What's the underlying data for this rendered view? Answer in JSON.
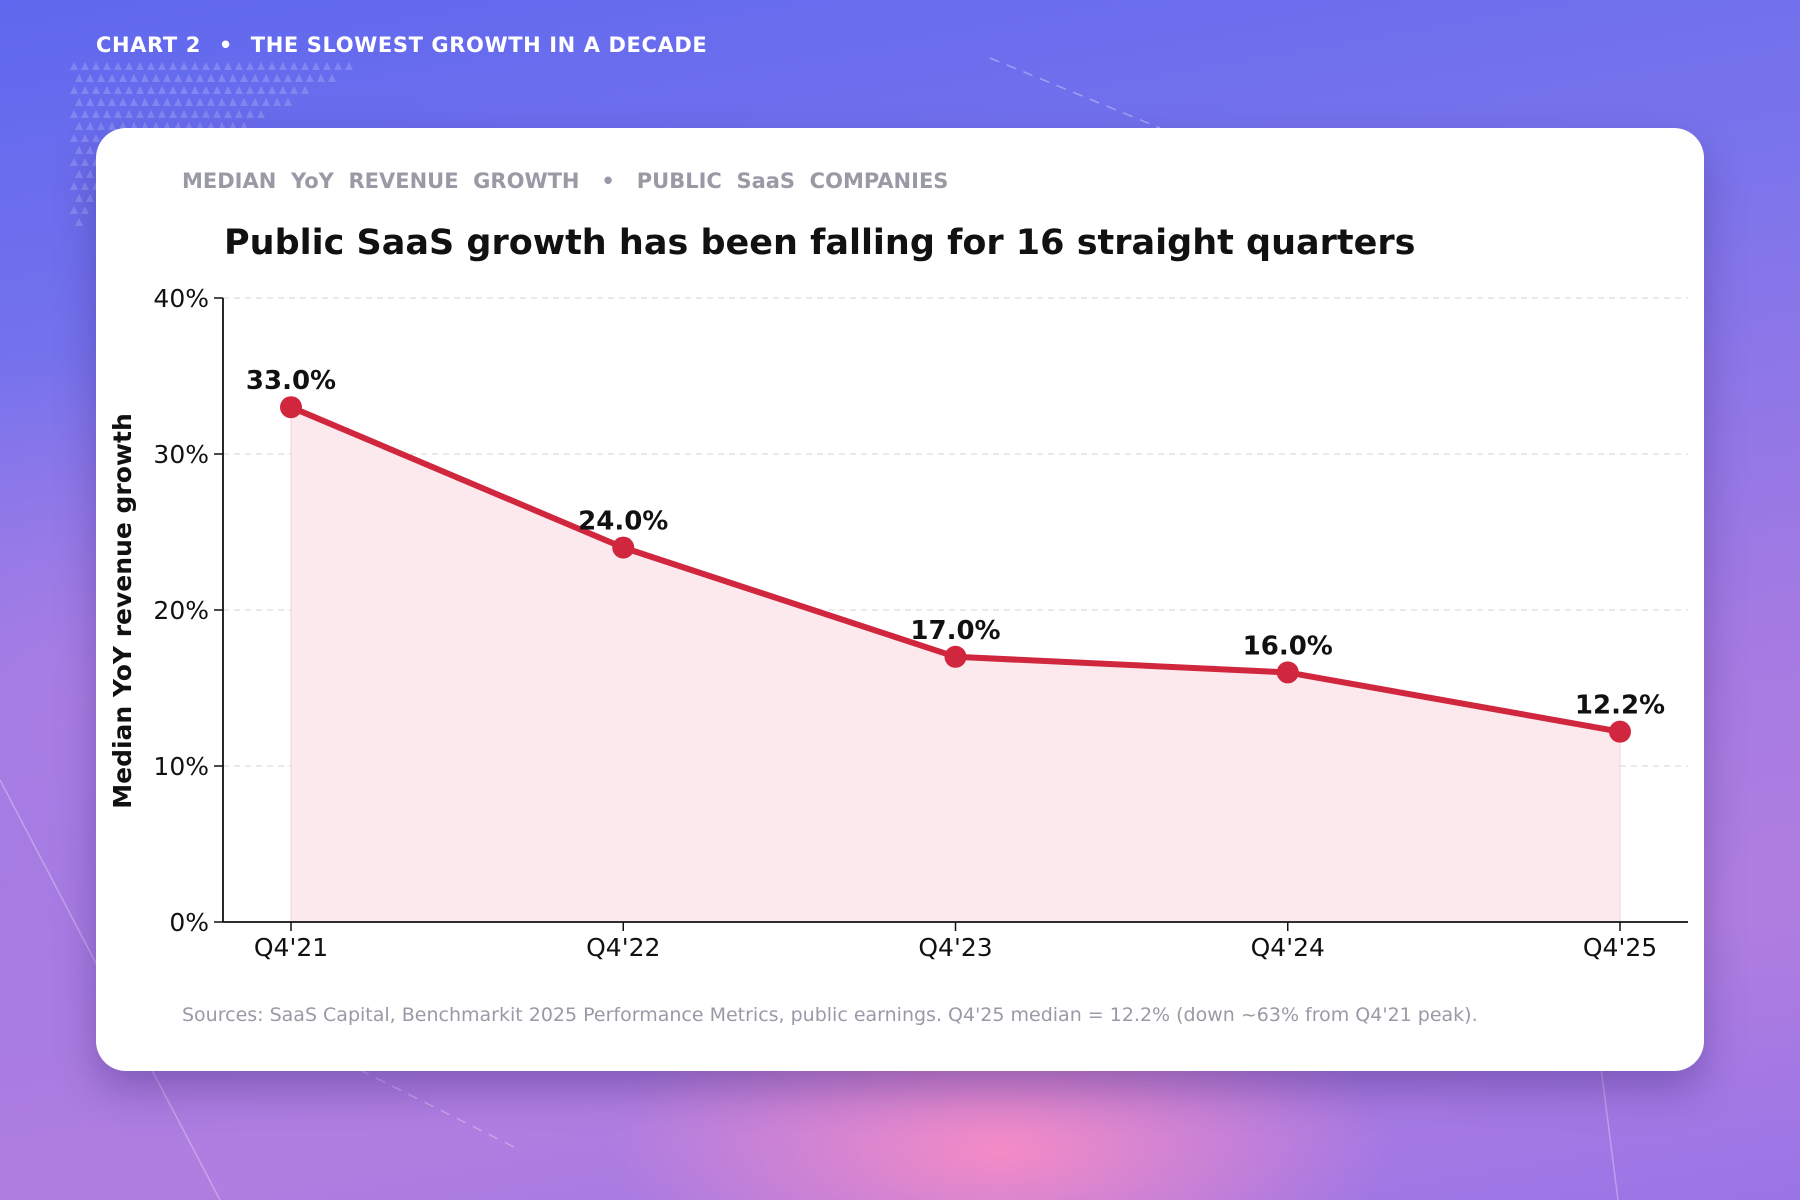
{
  "header": {
    "chart_number": "CHART 2",
    "separator": "•",
    "headline": "THE SLOWEST GROWTH IN A DECADE"
  },
  "card": {
    "eyebrow": "MEDIAN  YoY  REVENUE  GROWTH   •   PUBLIC  SaaS  COMPANIES",
    "source_note": "Sources: SaaS Capital, Benchmarkit 2025 Performance Metrics, public earnings.  Q4'25 median = 12.2% (down ~63% from Q4'21 peak)."
  },
  "colors": {
    "line": "#d0273e",
    "fill": "#fbe9ed",
    "grid": "#dddddd",
    "axis": "#111111",
    "muted_text": "#9a9aa6"
  },
  "chart_data": {
    "type": "line",
    "title": "Public SaaS growth has been falling for 16 straight quarters",
    "xlabel": "",
    "ylabel": "Median YoY revenue growth",
    "categories": [
      "Q4'21",
      "Q4'22",
      "Q4'23",
      "Q4'24",
      "Q4'25"
    ],
    "values": [
      33.0,
      24.0,
      17.0,
      16.0,
      12.2
    ],
    "data_labels": [
      "33.0%",
      "24.0%",
      "17.0%",
      "16.0%",
      "12.2%"
    ],
    "ylim": [
      0,
      40
    ],
    "yticks": [
      0,
      10,
      20,
      30,
      40
    ],
    "ytick_labels": [
      "0%",
      "10%",
      "20%",
      "30%",
      "40%"
    ],
    "grid": "horizontal dashed",
    "area_fill": true,
    "legend": "none"
  }
}
